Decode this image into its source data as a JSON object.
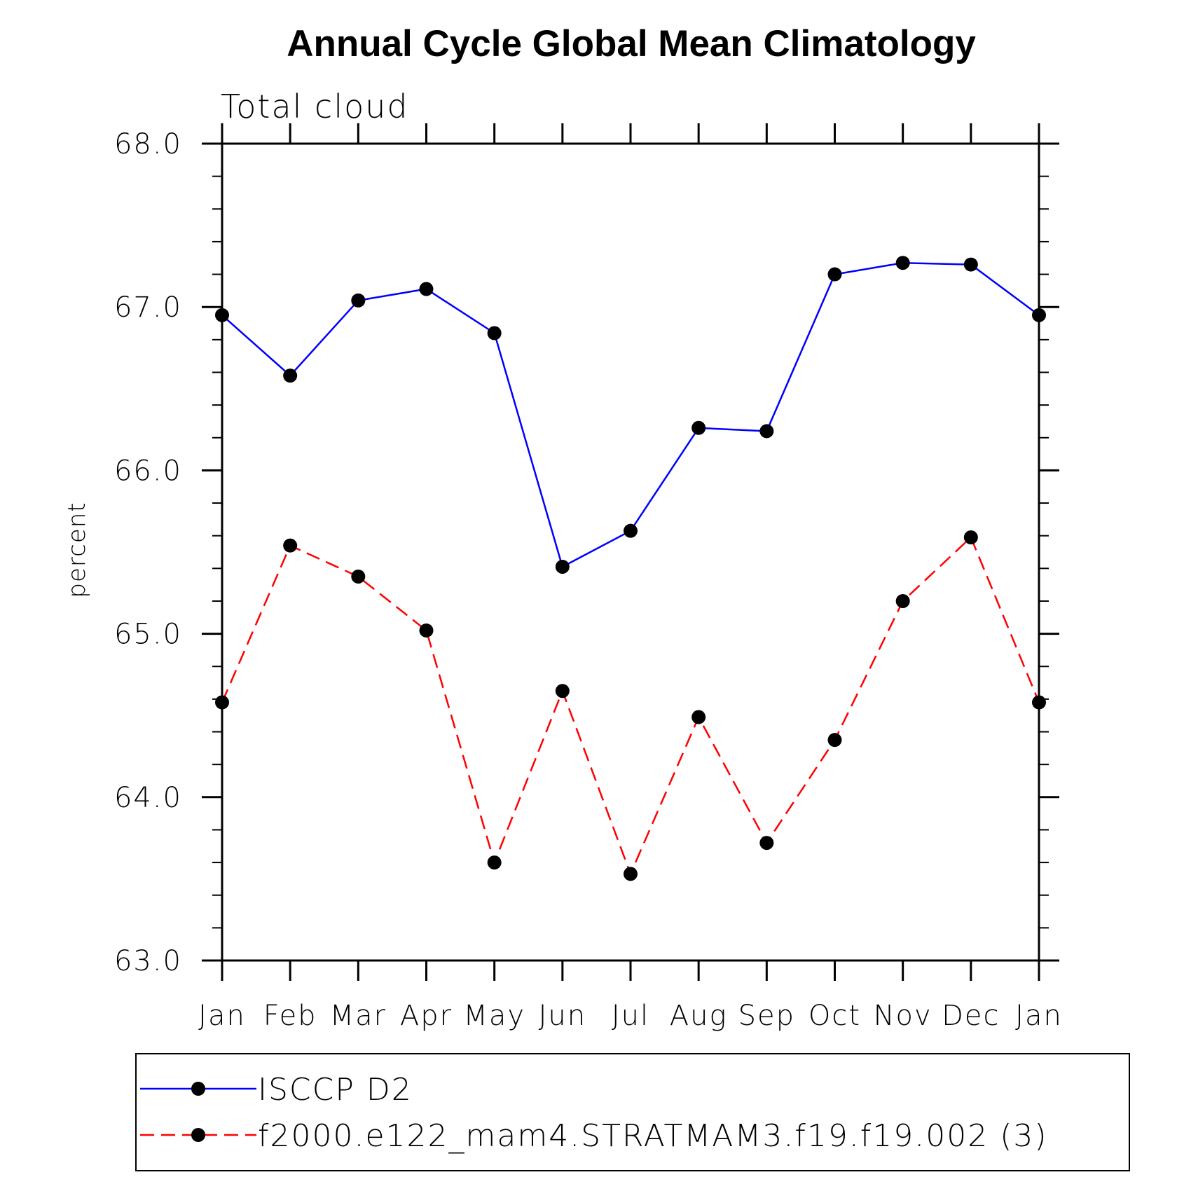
{
  "chart_data": {
    "type": "line",
    "title": "Annual Cycle Global Mean Climatology",
    "subtitle": "Total cloud",
    "xlabel": "",
    "ylabel": "percent",
    "categories": [
      "Jan",
      "Feb",
      "Mar",
      "Apr",
      "May",
      "Jun",
      "Jul",
      "Aug",
      "Sep",
      "Oct",
      "Nov",
      "Dec",
      "Jan"
    ],
    "ylim": [
      63.0,
      68.0
    ],
    "yticks": [
      "63.0",
      "64.0",
      "65.0",
      "66.0",
      "67.0",
      "68.0"
    ],
    "series": [
      {
        "name": "ISCCP D2",
        "color": "#0000ff",
        "dash": "solid",
        "values": [
          66.95,
          66.58,
          67.04,
          67.11,
          66.84,
          65.41,
          65.63,
          66.26,
          66.24,
          67.2,
          67.27,
          67.26,
          66.95
        ]
      },
      {
        "name": "f2000.e122_mam4.STRATMAM3.f19.f19.002 (3)",
        "color": "#ff0000",
        "dash": "dashed",
        "values": [
          64.58,
          65.54,
          65.35,
          65.02,
          63.6,
          64.65,
          63.53,
          64.49,
          63.72,
          64.35,
          65.2,
          65.59,
          64.58
        ]
      }
    ],
    "grid": false,
    "legend_position": "bottom"
  }
}
